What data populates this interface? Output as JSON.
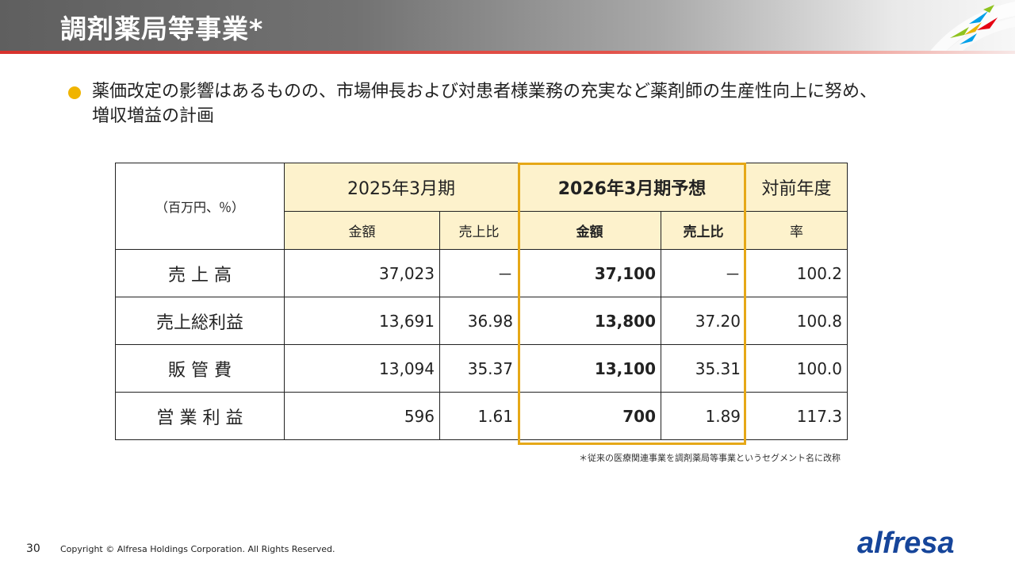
{
  "slide": {
    "title": "調剤薬局等事業*",
    "bullet": {
      "line1": "薬価改定の影響はあるものの、市場伸長および対患者様業務の充実など薬剤師の生産性向上に努め、",
      "line2": "増収増益の計画"
    }
  },
  "table": {
    "units": "（百万円、％）",
    "headers": {
      "period_actual": "2025年3月期",
      "period_forecast": "2026年3月期予想",
      "yoy": "対前年度",
      "amount": "金額",
      "sales_ratio": "売上比",
      "rate": "率"
    },
    "rows": [
      {
        "label": "売 上 高",
        "actual_amount": "37,023",
        "actual_ratio": "－",
        "forecast_amount": "37,100",
        "forecast_ratio": "－",
        "yoy": "100.2"
      },
      {
        "label": "売上総利益",
        "actual_amount": "13,691",
        "actual_ratio": "36.98",
        "forecast_amount": "13,800",
        "forecast_ratio": "37.20",
        "yoy": "100.8"
      },
      {
        "label": "販 管 費",
        "actual_amount": "13,094",
        "actual_ratio": "35.37",
        "forecast_amount": "13,100",
        "forecast_ratio": "35.31",
        "yoy": "100.0"
      },
      {
        "label": "営 業 利 益",
        "actual_amount": "596",
        "actual_ratio": "1.61",
        "forecast_amount": "700",
        "forecast_ratio": "1.89",
        "yoy": "117.3"
      }
    ]
  },
  "footnote": "＊従来の医療関連事業を調剤薬局等事業というセグメント名に改称",
  "footer": {
    "page_number": "30",
    "copyright": "Copyright © Alfresa Holdings Corporation. All Rights Reserved.",
    "brand": "alfresa"
  },
  "colors": {
    "accent_red": "#d7322d",
    "highlight_gold": "#e6a817",
    "header_fill": "#fdf2cc",
    "bullet_dot": "#f0b400",
    "brand_blue": "#16459a"
  }
}
